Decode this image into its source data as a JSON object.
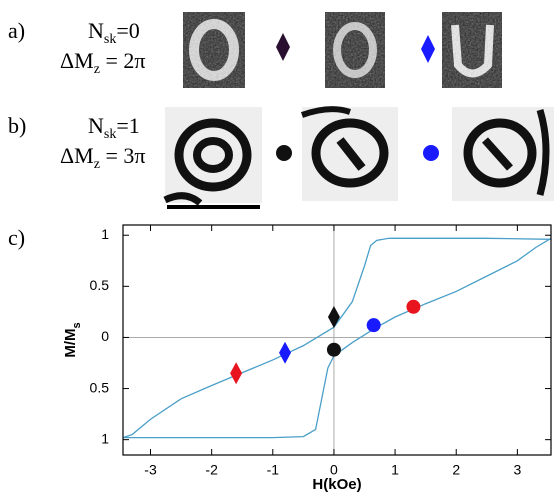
{
  "panels": [
    {
      "label": "a)",
      "n": [
        "N",
        "sk",
        "=0"
      ],
      "dm": [
        "ΔM",
        "z",
        " = 2π"
      ]
    },
    {
      "label": "b)",
      "n": [
        "N",
        "sk",
        "=1"
      ],
      "dm": [
        "ΔM",
        "z",
        " = 3π"
      ]
    },
    {
      "label": "c)"
    }
  ],
  "chart_data": {
    "type": "line",
    "x_label": "H(kOe)",
    "y_label": [
      "M/M",
      "s"
    ],
    "xlim": [
      -3.45,
      3.55
    ],
    "ylim": [
      -1.15,
      1.1
    ],
    "xticks": [
      -3,
      -2,
      -1,
      0,
      1,
      2,
      3
    ],
    "yticks": [
      {
        "value": -1,
        "label": "1"
      },
      {
        "value": -0.5,
        "label": "0.5"
      },
      0,
      0.5,
      1
    ],
    "zero_lines": true,
    "series": [
      {
        "color": "#4a9fc8",
        "x": [
          -3.45,
          -3,
          -2,
          -1,
          -0.5,
          -0.3,
          -0.2,
          -0.1,
          0,
          0.3,
          0.7,
          1,
          1.5,
          2,
          2.5,
          3,
          3.3,
          3.55
        ],
        "values": [
          -0.98,
          -0.98,
          -0.98,
          -0.98,
          -0.97,
          -0.9,
          -0.6,
          -0.3,
          -0.18,
          -0.05,
          0.1,
          0.2,
          0.33,
          0.45,
          0.6,
          0.75,
          0.88,
          0.97
        ]
      },
      {
        "color": "#4a9fc8",
        "x": [
          -3.45,
          -3.3,
          -3,
          -2.5,
          -2,
          -1.6,
          -1,
          -0.5,
          0,
          0.3,
          0.5,
          0.6,
          0.7,
          0.9,
          1.5,
          2.5,
          3.55
        ],
        "values": [
          -0.98,
          -0.95,
          -0.8,
          -0.6,
          -0.47,
          -0.37,
          -0.22,
          -0.08,
          0.1,
          0.35,
          0.7,
          0.9,
          0.95,
          0.97,
          0.97,
          0.97,
          0.96
        ]
      }
    ],
    "points": [
      {
        "marker": "diamond",
        "colors": [
          "#e8141e",
          "#1a1aff",
          "#111111"
        ],
        "x": [
          -1.6,
          -0.8,
          0
        ],
        "values": [
          -0.35,
          -0.15,
          0.2
        ]
      },
      {
        "marker": "circle",
        "colors": [
          "#111111",
          "#1a1aff",
          "#e8141e"
        ],
        "x": [
          0,
          0.65,
          1.3
        ],
        "values": [
          -0.12,
          0.12,
          0.3
        ]
      }
    ]
  }
}
